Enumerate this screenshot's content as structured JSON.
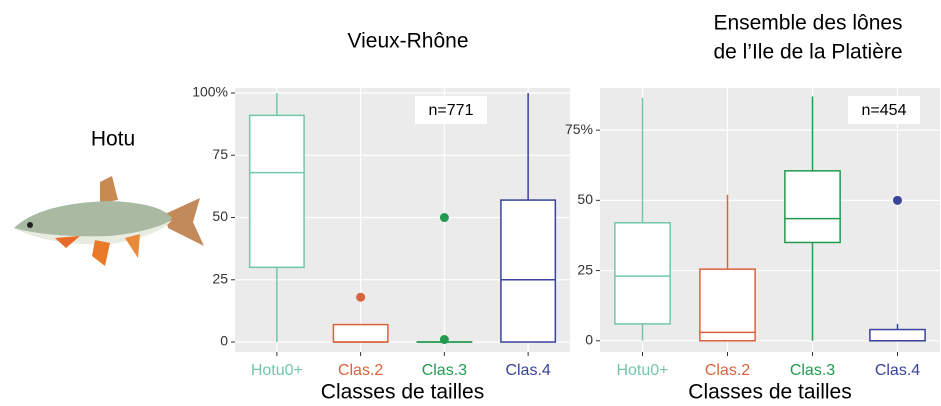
{
  "species": "Hotu",
  "chart_data": [
    {
      "type": "box",
      "title": [
        "Vieux-Rhône"
      ],
      "annotation": "n=771",
      "xlabel": "Classes de tailles",
      "categories": [
        "Hotu0+",
        "Clas.2",
        "Clas.3",
        "Clas.4"
      ],
      "colors": [
        "#72c7ab",
        "#d9633e",
        "#239a4f",
        "#3a429a"
      ],
      "min": [
        0,
        0,
        0,
        0
      ],
      "q1": [
        30,
        0,
        0,
        0
      ],
      "median": [
        68,
        0,
        0,
        25
      ],
      "q3": [
        91,
        7,
        0,
        57
      ],
      "max": [
        100,
        7,
        0,
        100
      ],
      "outliers": [
        [],
        [
          18
        ],
        [
          50,
          1
        ],
        []
      ],
      "ylim": [
        -4,
        102
      ],
      "yticks": [
        0,
        25,
        50,
        75,
        {
          "value": 100,
          "label": "100%"
        }
      ],
      "grid": true
    },
    {
      "type": "box",
      "title": [
        "Ensemble des lônes",
        "de l’Ile de la Platière"
      ],
      "annotation": "n=454",
      "xlabel": "Classes de tailles",
      "categories": [
        "Hotu0+",
        "Clas.2",
        "Clas.3",
        "Clas.4"
      ],
      "colors": [
        "#72c7ab",
        "#d9633e",
        "#239a4f",
        "#3a429a"
      ],
      "min": [
        0,
        0,
        0,
        0
      ],
      "q1": [
        6,
        0,
        35,
        0
      ],
      "median": [
        23,
        3,
        43.5,
        0
      ],
      "q3": [
        42,
        25.5,
        60.5,
        4
      ],
      "max": [
        86.5,
        52,
        87,
        6
      ],
      "outliers": [
        [],
        [],
        [],
        [
          50
        ]
      ],
      "ylim": [
        -4,
        90
      ],
      "yticks": [
        0,
        25,
        50,
        {
          "value": 75,
          "label": "75%"
        }
      ],
      "grid": true
    }
  ]
}
